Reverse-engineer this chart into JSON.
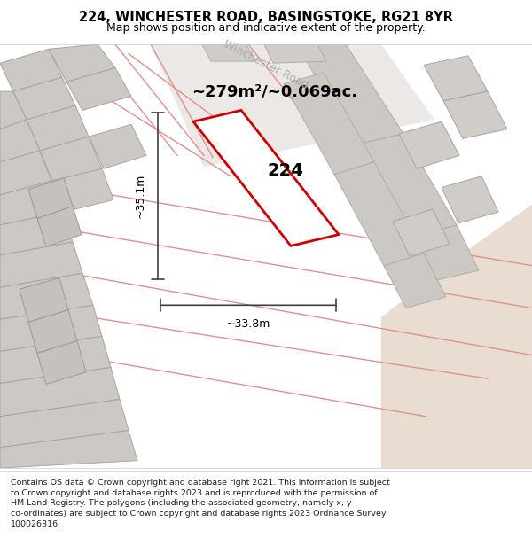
{
  "title": "224, WINCHESTER ROAD, BASINGSTOKE, RG21 8YR",
  "subtitle": "Map shows position and indicative extent of the property.",
  "area_text": "~279m²/~0.069ac.",
  "label_224": "224",
  "dim_height": "~35.1m",
  "dim_width": "~33.8m",
  "road_label": "Winchester Road",
  "footer_text": "Contains OS data © Crown copyright and database right 2021. This information is subject\nto Crown copyright and database rights 2023 and is reproduced with the permission of\nHM Land Registry. The polygons (including the associated geometry, namely x, y\nco-ordinates) are subject to Crown copyright and database rights 2023 Ordnance Survey\n100026316.",
  "map_bg": "#f0ede8",
  "highlight_color": "#cc0000",
  "dim_line_color": "#404040",
  "text_color": "#000000",
  "road_outline_color": "#e09090",
  "block_face_color": "#d0cdc8",
  "block_edge_color": "#b0aca6",
  "sandy_color": "#e8ddd0"
}
